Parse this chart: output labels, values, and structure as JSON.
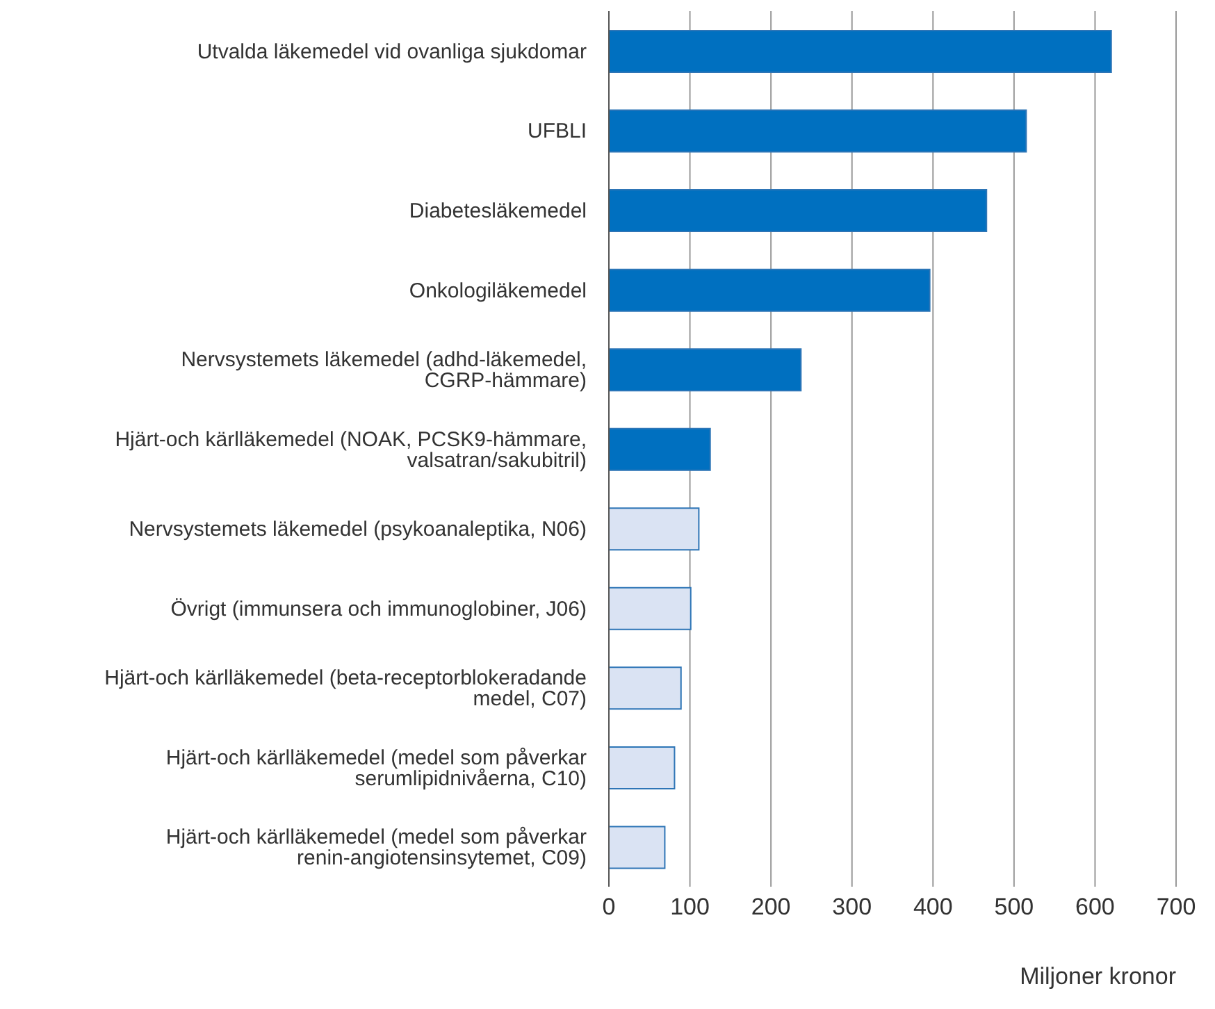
{
  "chart_data": {
    "type": "bar",
    "orientation": "horizontal",
    "xlabel": "Miljoner kronor",
    "categories": [
      "Utvalda läkemedel vid ovanliga sjukdomar",
      "UFBLI",
      "Diabetesläkemedel",
      "Onkologiläkemedel",
      "Nervsystemets läkemedel (adhd-läkemedel, CGRP-hämmare)",
      "Hjärt-och kärlläkemedel (NOAK, PCSK9-hämmare, valsatran/sakubitril)",
      "Nervsystemets läkemedel (psykoanaleptika, N06)",
      "Övrigt (immunsera och immunoglobiner, J06)",
      "Hjärt-och kärlläkemedel (beta-receptorblokeradande medel, C07)",
      "Hjärt-och kärlläkemedel (medel som påverkar serumlipidnivåerna, C10)",
      "Hjärt-och kärlläkemedel (medel som påverkar renin-angiotensinsytemet, C09)"
    ],
    "values": [
      620,
      515,
      466,
      396,
      237,
      125,
      111,
      101,
      89,
      81,
      69
    ],
    "colors": [
      "#0070c0",
      "#0070c0",
      "#0070c0",
      "#0070c0",
      "#0070c0",
      "#0070c0",
      "#dae3f3",
      "#dae3f3",
      "#dae3f3",
      "#dae3f3",
      "#dae3f3"
    ],
    "xlim": [
      0,
      700
    ],
    "xticks": [
      0,
      100,
      200,
      300,
      400,
      500,
      600,
      700
    ],
    "grid": "x"
  }
}
